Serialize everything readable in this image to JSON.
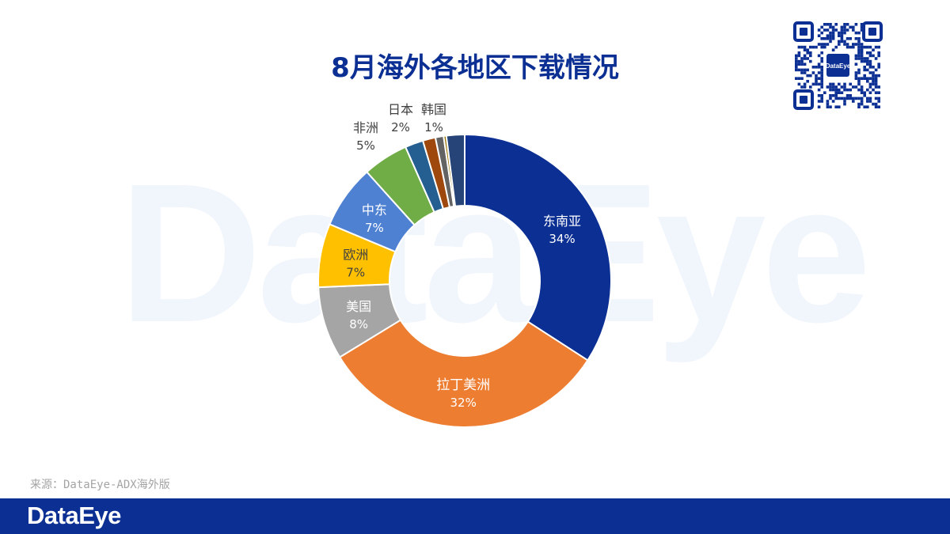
{
  "watermark": "DataEye",
  "title": "8月海外各地区下载情况",
  "qr": {
    "center_label": "DataEye"
  },
  "source_note": "来源：DataEye-ADX海外版",
  "footer": {
    "logo": "DataEye"
  },
  "colors": {
    "brand": "#0b2f93",
    "background": "#ffffff"
  },
  "chart_data": {
    "type": "pie",
    "title": "8月海外各地区下载情况",
    "slices": [
      {
        "name": "东南亚",
        "label": "34%",
        "value": 34,
        "color": "#0b2f93"
      },
      {
        "name": "拉丁美洲",
        "label": "32%",
        "value": 32,
        "color": "#ed7d31"
      },
      {
        "name": "美国",
        "label": "8%",
        "value": 8,
        "color": "#a5a5a5"
      },
      {
        "name": "欧洲",
        "label": "7%",
        "value": 7,
        "color": "#ffc000"
      },
      {
        "name": "中东",
        "label": "7%",
        "value": 7,
        "color": "#4f81d3"
      },
      {
        "name": "非洲",
        "label": "5%",
        "value": 5,
        "color": "#70ad47"
      },
      {
        "name": "日本",
        "label": "2%",
        "value": 2,
        "color": "#255e91"
      },
      {
        "name": "韩国",
        "label": "1%",
        "value": 1.4,
        "color": "#9e480e"
      },
      {
        "name": "",
        "label": "",
        "value": 0.9,
        "color": "#636363"
      },
      {
        "name": "",
        "label": "",
        "value": 0.3,
        "color": "#997300"
      },
      {
        "name": "",
        "label": "",
        "value": 2.0,
        "color": "#264478"
      }
    ]
  }
}
